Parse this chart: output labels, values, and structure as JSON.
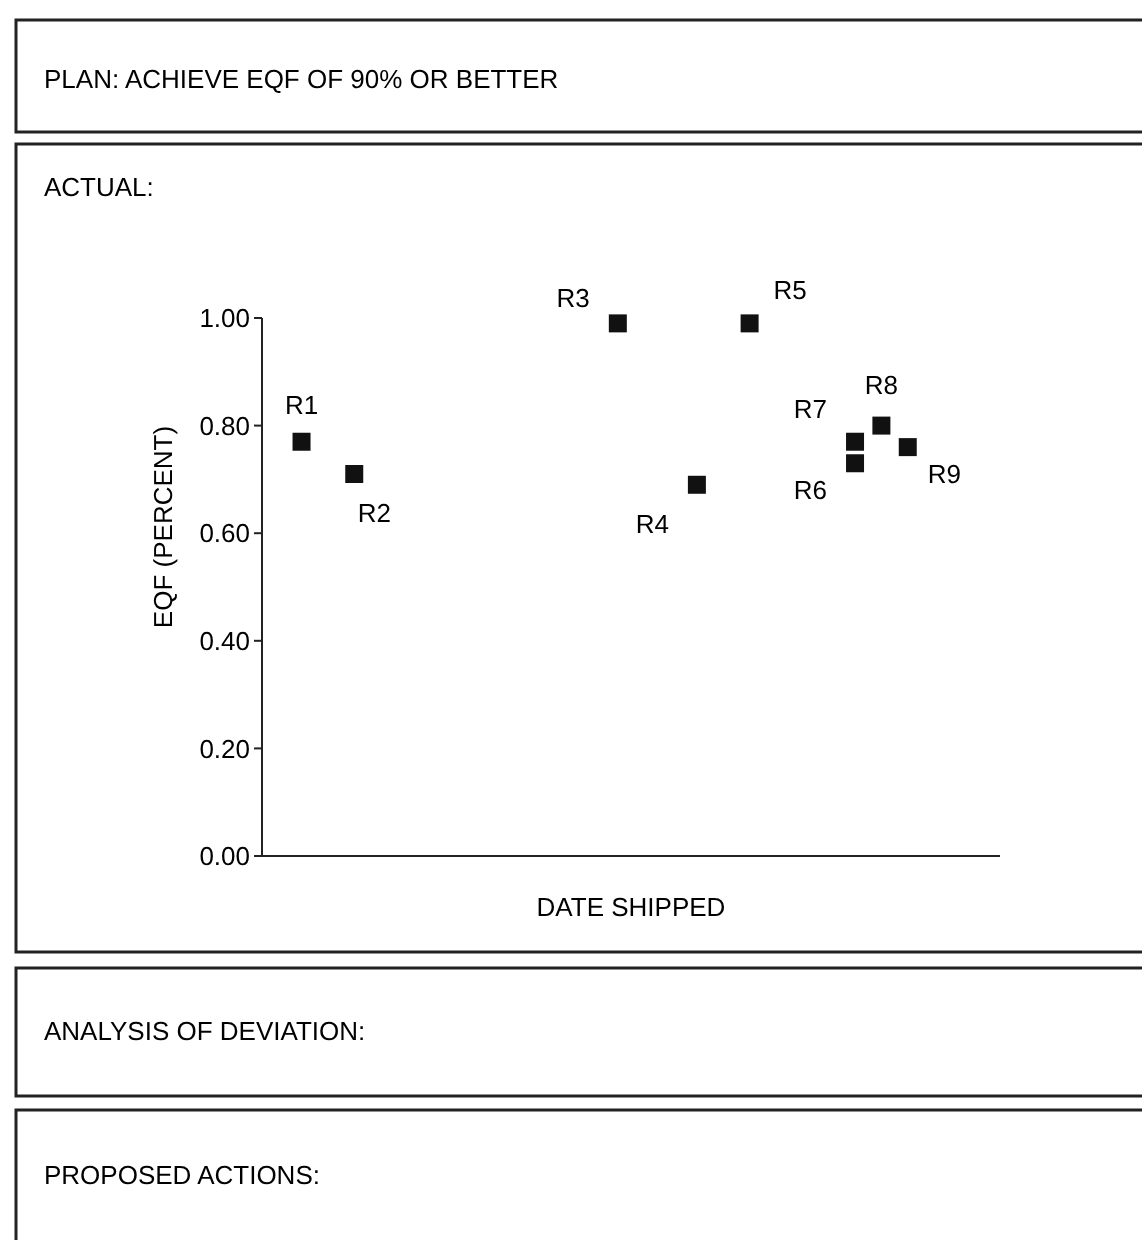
{
  "chart_data": {
    "type": "scatter",
    "title": "PLAN: ACHIEVE EQF OF 90% OR BETTER",
    "subtitle": "ACTUAL:",
    "xlabel": "DATE SHIPPED",
    "ylabel": "EQF (PERCENT)",
    "annotations": [
      "ANALYSIS OF DEVIATION:",
      "PROPOSED ACTIONS:"
    ],
    "categories": [
      null,
      null,
      null,
      null,
      null,
      null,
      null,
      null,
      null,
      null,
      null,
      null,
      null,
      null,
      null,
      null,
      null,
      null,
      null,
      null,
      null,
      null,
      null,
      null,
      null,
      null,
      null,
      null
    ],
    "ylim": [
      0,
      1
    ],
    "yticks": [
      {
        "value": 0,
        "label": "0.00"
      },
      {
        "value": 0.2,
        "label": "0.20"
      },
      {
        "value": 0.4,
        "label": "0.40"
      },
      {
        "value": 0.6,
        "label": "0.60"
      },
      {
        "value": 0.8,
        "label": "0.80"
      },
      {
        "value": 1,
        "label": "1.00"
      }
    ],
    "marker": "square",
    "series": [
      {
        "name": "R1",
        "color": "#111111",
        "values": [
          null,
          0.77,
          null,
          null,
          null,
          null,
          null,
          null,
          null,
          null,
          null,
          null,
          null,
          null,
          null,
          null,
          null,
          null,
          null,
          null,
          null,
          null,
          null,
          null,
          null,
          null,
          null,
          null
        ]
      },
      {
        "name": "R2",
        "color": "#111111",
        "values": [
          null,
          null,
          null,
          0.71,
          null,
          null,
          null,
          null,
          null,
          null,
          null,
          null,
          null,
          null,
          null,
          null,
          null,
          null,
          null,
          null,
          null,
          null,
          null,
          null,
          null,
          null,
          null,
          null
        ]
      },
      {
        "name": "R3",
        "color": "#111111",
        "values": [
          null,
          null,
          null,
          null,
          null,
          null,
          null,
          null,
          null,
          null,
          null,
          null,
          null,
          0.99,
          null,
          null,
          null,
          null,
          null,
          null,
          null,
          null,
          null,
          null,
          null,
          null,
          null,
          null
        ]
      },
      {
        "name": "R4",
        "color": "#111111",
        "values": [
          null,
          null,
          null,
          null,
          null,
          null,
          null,
          null,
          null,
          null,
          null,
          null,
          null,
          null,
          null,
          null,
          0.69,
          null,
          null,
          null,
          null,
          null,
          null,
          null,
          null,
          null,
          null,
          null
        ]
      },
      {
        "name": "R5",
        "color": "#111111",
        "values": [
          null,
          null,
          null,
          null,
          null,
          null,
          null,
          null,
          null,
          null,
          null,
          null,
          null,
          null,
          null,
          null,
          null,
          null,
          0.99,
          null,
          null,
          null,
          null,
          null,
          null,
          null,
          null,
          null
        ]
      },
      {
        "name": "R6",
        "color": "#111111",
        "values": [
          null,
          null,
          null,
          null,
          null,
          null,
          null,
          null,
          null,
          null,
          null,
          null,
          null,
          null,
          null,
          null,
          null,
          null,
          null,
          null,
          null,
          null,
          0.73,
          null,
          null,
          null,
          null,
          null
        ]
      },
      {
        "name": "R7",
        "color": "#111111",
        "values": [
          null,
          null,
          null,
          null,
          null,
          null,
          null,
          null,
          null,
          null,
          null,
          null,
          null,
          null,
          null,
          null,
          null,
          null,
          null,
          null,
          null,
          null,
          0.77,
          null,
          null,
          null,
          null,
          null
        ]
      },
      {
        "name": "R8",
        "color": "#111111",
        "values": [
          null,
          null,
          null,
          null,
          null,
          null,
          null,
          null,
          null,
          null,
          null,
          null,
          null,
          null,
          null,
          null,
          null,
          null,
          null,
          null,
          null,
          null,
          null,
          0.8,
          null,
          null,
          null,
          null
        ]
      },
      {
        "name": "R9",
        "color": "#111111",
        "values": [
          null,
          null,
          null,
          null,
          null,
          null,
          null,
          null,
          null,
          null,
          null,
          null,
          null,
          null,
          null,
          null,
          null,
          null,
          null,
          null,
          null,
          null,
          null,
          null,
          0.76,
          null,
          null,
          null
        ]
      }
    ]
  }
}
